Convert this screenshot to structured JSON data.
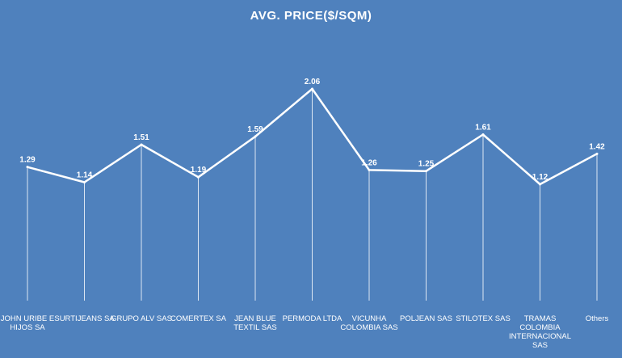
{
  "chart_data": {
    "type": "line",
    "title": "AVG. PRICE($/SQM)",
    "xlabel": "",
    "ylabel": "",
    "categories": [
      [
        "JOHN URIBE E",
        "HIJOS SA"
      ],
      [
        "SURTIJEANS SA"
      ],
      [
        "GRUPO ALV SAS"
      ],
      [
        "COMERTEX SA"
      ],
      [
        "JEAN BLUE",
        "TEXTIL SAS"
      ],
      [
        "PERMODA LTDA"
      ],
      [
        "VICUNHA",
        "COLOMBIA SAS"
      ],
      [
        "POLJEAN SAS"
      ],
      [
        "STILOTEX SAS"
      ],
      [
        "TRAMAS",
        "COLOMBIA",
        "INTERNACIONAL",
        "SAS"
      ],
      [
        "Others"
      ]
    ],
    "series": [
      {
        "values": [
          1.29,
          1.14,
          1.51,
          1.19,
          1.59,
          2.06,
          1.26,
          1.25,
          1.61,
          1.12,
          1.42
        ],
        "labels": [
          "1.29",
          "1.14",
          "1.51",
          "1.19",
          "1.59",
          "2.06",
          "1.26",
          "1.25",
          "1.61",
          "1.12",
          "1.42"
        ]
      }
    ],
    "drop_lines": true,
    "grid": false,
    "legend": "none",
    "colors": {
      "background": "#4f81bd",
      "line": "#ffffff",
      "text": "#ffffff"
    }
  }
}
